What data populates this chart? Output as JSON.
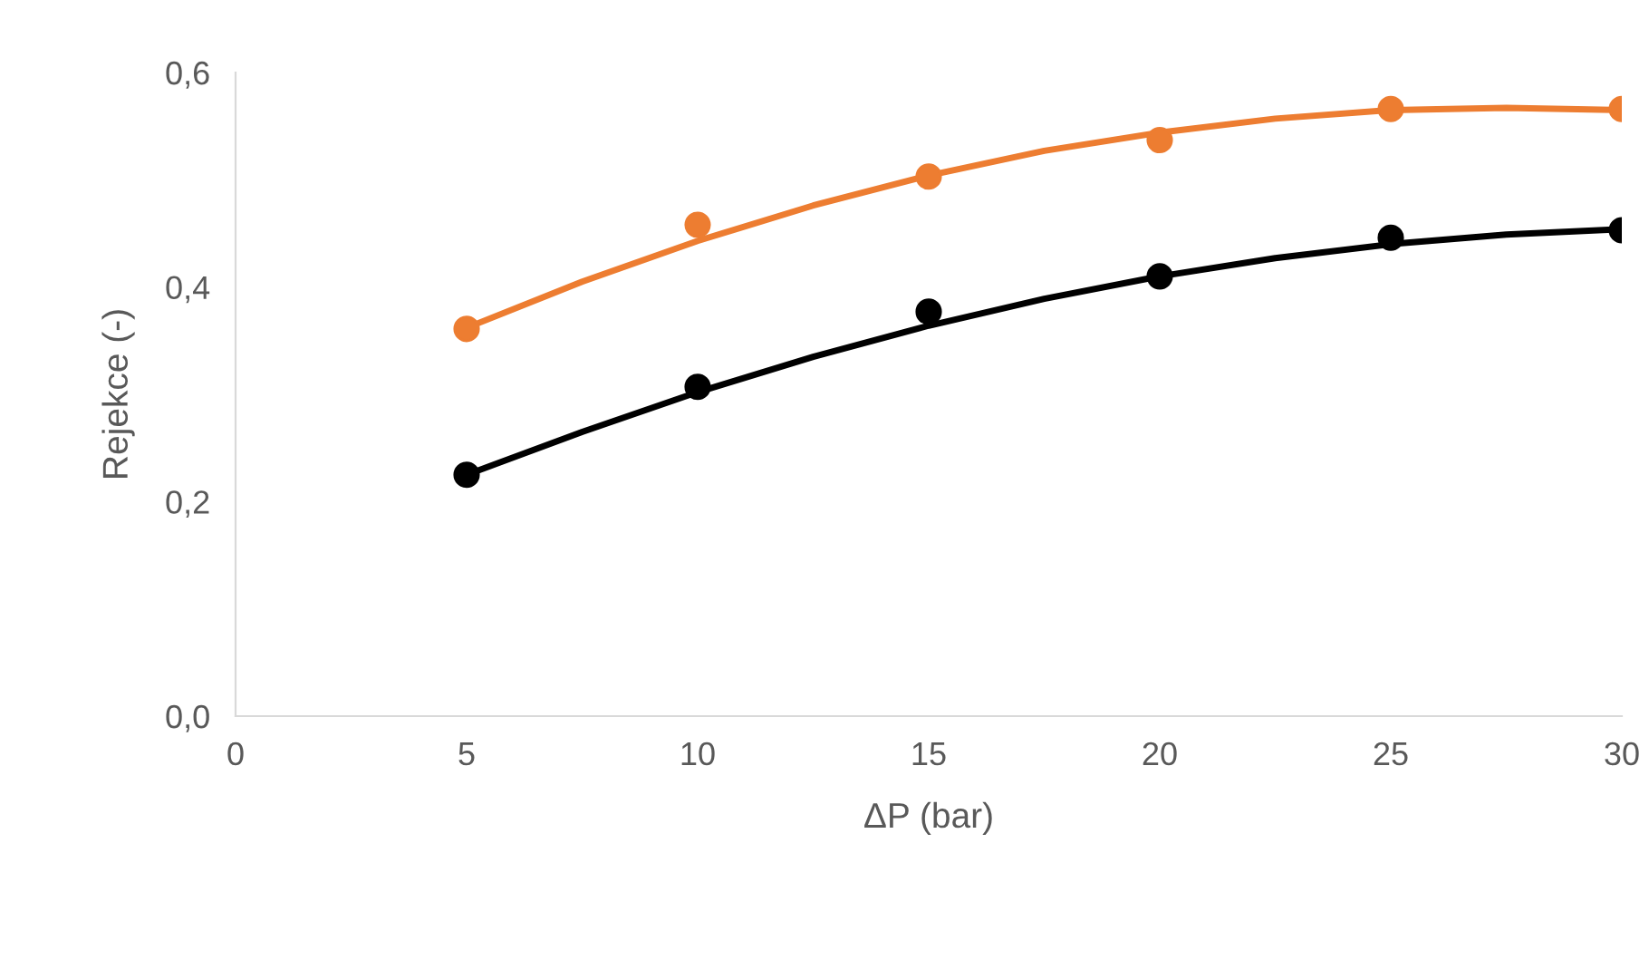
{
  "chart_data": {
    "type": "scatter",
    "xlabel": "ΔP (bar)",
    "ylabel": "Rejekce (-)",
    "xlim": [
      0,
      30
    ],
    "xticks": [
      0,
      5,
      10,
      15,
      20,
      25,
      30
    ],
    "ylim": [
      0,
      0.6
    ],
    "yticks": [
      {
        "value": 0,
        "label": "0,0"
      },
      {
        "value": 0.2,
        "label": "0,2"
      },
      {
        "value": 0.4,
        "label": "0,4"
      },
      {
        "value": 0.6,
        "label": "0,6"
      }
    ],
    "grid": false,
    "series": [
      {
        "type": "line",
        "color": "#000000",
        "x": [
          5,
          7.5,
          10,
          12.5,
          15,
          17.5,
          20,
          22.5,
          25,
          27.5,
          30
        ],
        "values": [
          0.225,
          0.265,
          0.302,
          0.335,
          0.364,
          0.389,
          0.41,
          0.427,
          0.44,
          0.449,
          0.454
        ],
        "marker": "none"
      },
      {
        "type": "line",
        "color": "#ed7d31",
        "x": [
          5,
          7.5,
          10,
          12.5,
          15,
          17.5,
          20,
          22.5,
          25,
          27.5,
          30
        ],
        "values": [
          0.362,
          0.405,
          0.443,
          0.476,
          0.504,
          0.527,
          0.544,
          0.557,
          0.565,
          0.567,
          0.565
        ],
        "marker": "none"
      },
      {
        "color": "#000000",
        "x": [
          5,
          10,
          15,
          20,
          25,
          30
        ],
        "values": [
          0.225,
          0.307,
          0.377,
          0.41,
          0.446,
          0.453
        ],
        "marker": "circle"
      },
      {
        "color": "#ed7d31",
        "x": [
          5,
          10,
          15,
          20,
          25,
          30
        ],
        "values": [
          0.361,
          0.458,
          0.503,
          0.537,
          0.566,
          0.566
        ],
        "marker": "circle"
      }
    ]
  }
}
